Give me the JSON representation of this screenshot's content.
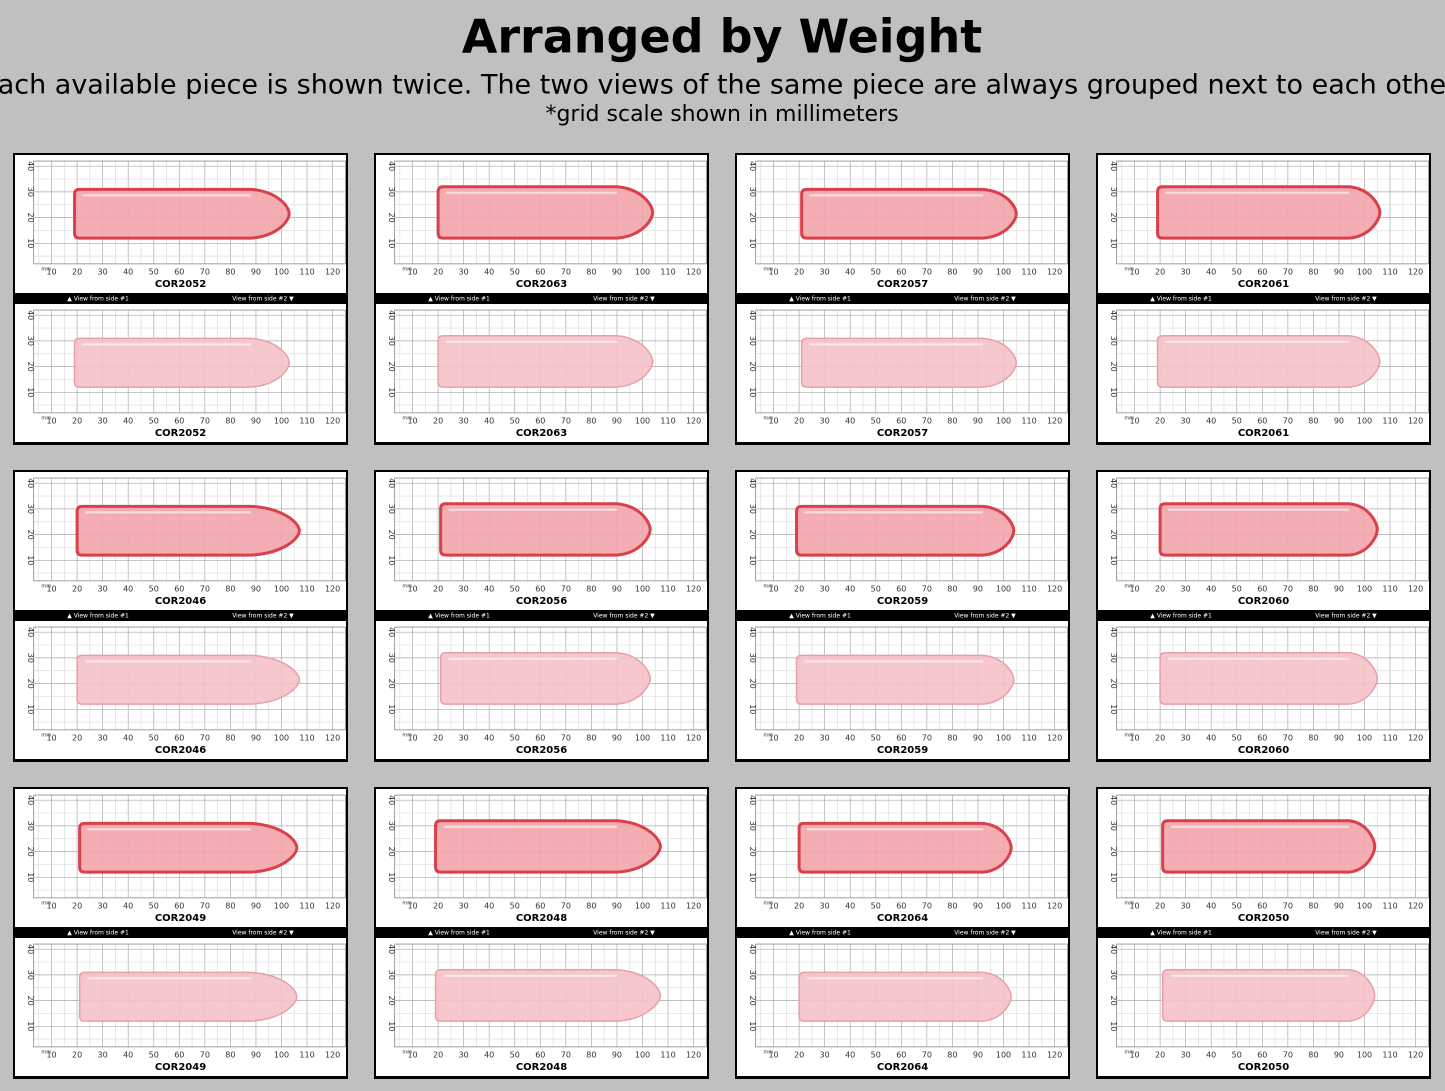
{
  "header": {
    "title": "Arranged by Weight",
    "subtitle": "Each available piece is shown twice. The two views of the same piece are always grouped next to each other.",
    "note": "*grid scale shown in millimeters"
  },
  "scale": {
    "x_ticks": [
      10,
      20,
      30,
      40,
      50,
      60,
      70,
      80,
      90,
      100,
      110,
      120
    ],
    "y_ticks": [
      40,
      30,
      20,
      10
    ],
    "unit": "mm"
  },
  "view_labels": [
    "▲ View from side #1",
    "View from side #2 ▼"
  ],
  "cards": [
    {
      "id": "COR2052"
    },
    {
      "id": "COR2063"
    },
    {
      "id": "COR2057"
    },
    {
      "id": "COR2061"
    },
    {
      "id": "COR2046"
    },
    {
      "id": "COR2056"
    },
    {
      "id": "COR2059"
    },
    {
      "id": "COR2060"
    },
    {
      "id": "COR2049"
    },
    {
      "id": "COR2048"
    },
    {
      "id": "COR2064"
    },
    {
      "id": "COR2050"
    }
  ]
}
